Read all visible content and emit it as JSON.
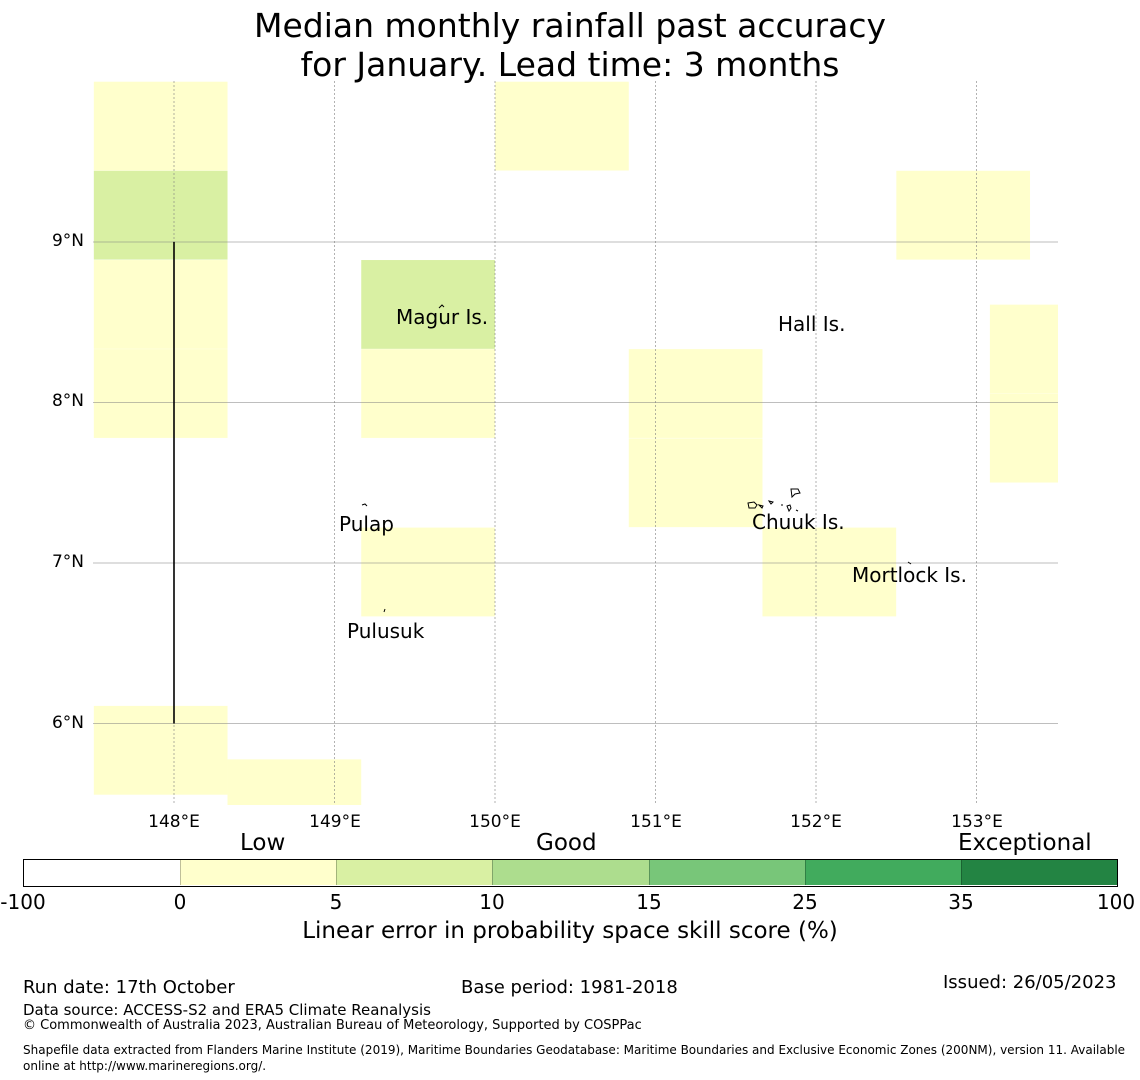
{
  "title": {
    "line1": "Median monthly rainfall past accuracy",
    "line2": "for January. Lead time: 3 months"
  },
  "map": {
    "x_ticks": [
      "148°E",
      "149°E",
      "150°E",
      "151°E",
      "152°E",
      "153°E"
    ],
    "y_ticks": [
      "9°N",
      "8°N",
      "7°N",
      "6°N"
    ],
    "lon_range": [
      147.5,
      153.5
    ],
    "lat_range": [
      5.5,
      10.0
    ],
    "cell_size_deg": 0.833,
    "cells": [
      {
        "lon": 147.917,
        "lat": 9.722,
        "category": "0-5"
      },
      {
        "lon": 147.917,
        "lat": 9.167,
        "category": "5-10"
      },
      {
        "lon": 147.917,
        "lat": 8.611,
        "category": "0-5"
      },
      {
        "lon": 147.917,
        "lat": 8.056,
        "category": "0-5"
      },
      {
        "lon": 147.917,
        "lat": 5.833,
        "category": "0-5"
      },
      {
        "lon": 148.75,
        "lat": 5.5,
        "category": "0-5"
      },
      {
        "lon": 149.583,
        "lat": 8.611,
        "category": "5-10"
      },
      {
        "lon": 149.583,
        "lat": 8.056,
        "category": "0-5"
      },
      {
        "lon": 149.583,
        "lat": 6.944,
        "category": "0-5"
      },
      {
        "lon": 150.417,
        "lat": 9.722,
        "category": "0-5"
      },
      {
        "lon": 151.25,
        "lat": 8.056,
        "category": "0-5"
      },
      {
        "lon": 151.25,
        "lat": 7.5,
        "category": "0-5"
      },
      {
        "lon": 152.083,
        "lat": 6.944,
        "category": "0-5"
      },
      {
        "lon": 152.917,
        "lat": 9.167,
        "category": "0-5"
      },
      {
        "lon": 153.5,
        "lat": 8.333,
        "category": "0-5"
      },
      {
        "lon": 153.5,
        "lat": 7.778,
        "category": "0-5"
      }
    ],
    "boundary_line": {
      "lon": 148.0,
      "lat_from": 6.0,
      "lat_to": 9.0
    },
    "places": [
      {
        "name": "Magur Is.",
        "lon": 149.65,
        "lat": 8.55
      },
      {
        "name": "Hall Is.",
        "lon": 151.8,
        "lat": 8.5
      },
      {
        "name": "Pulap",
        "lon": 149.2,
        "lat": 7.25
      },
      {
        "name": "Chuuk Is.",
        "lon": 151.85,
        "lat": 7.26
      },
      {
        "name": "Mortlock Is.",
        "lon": 152.6,
        "lat": 6.93
      },
      {
        "name": "Pulusuk",
        "lon": 149.33,
        "lat": 6.6
      }
    ]
  },
  "colorbar": {
    "categories": [
      "Low",
      "Good",
      "Exceptional"
    ],
    "labels": [
      "-100",
      "0",
      "5",
      "10",
      "15",
      "25",
      "35",
      "100"
    ],
    "colors": [
      "#ffffff",
      "#ffffcc",
      "#d9f0a3",
      "#addd8e",
      "#78c679",
      "#41ab5d",
      "#238443"
    ],
    "title": "Linear error in probability space skill score (%)"
  },
  "colors": {
    "0-5": "#ffffcc",
    "5-10": "#d9f0a3"
  },
  "footer": {
    "run_date": "Run date: 17th October",
    "base_period": "Base period: 1981-2018",
    "issued": "Issued: 26/05/2023",
    "data_source": "Data source: ACCESS-S2 and ERA5 Climate Reanalysis",
    "copyright": "© Commonwealth of Australia 2023, Australian Bureau of Meteorology, Supported by COSPPac",
    "shapefile": "Shapefile data extracted from Flanders Marine Institute (2019), Maritime Boundaries Geodatabase: Maritime Boundaries and Exclusive Economic Zones (200NM), version 11. Available online at http://www.marineregions.org/."
  }
}
